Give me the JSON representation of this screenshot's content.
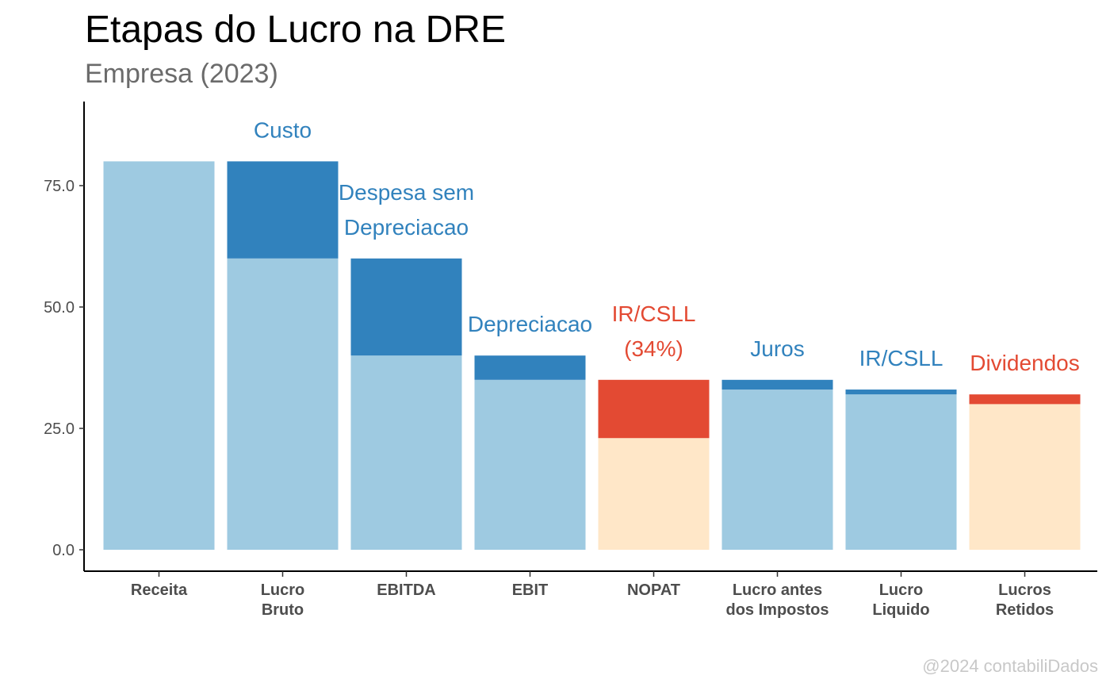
{
  "chart_data": {
    "type": "bar",
    "stacked": true,
    "title": "Etapas do Lucro na DRE",
    "subtitle": "Empresa (2023)",
    "caption": "@2024 contabiliDados",
    "xlabel": "",
    "ylabel": "",
    "ylim": [
      0,
      90
    ],
    "yticks": [
      "0.0",
      "25.0",
      "50.0",
      "75.0"
    ],
    "ytick_values": [
      0,
      25,
      50,
      75
    ],
    "grid": false,
    "categories": [
      [
        "Receita"
      ],
      [
        "Lucro",
        "Bruto"
      ],
      [
        "EBITDA"
      ],
      [
        "EBIT"
      ],
      [
        "NOPAT"
      ],
      [
        "Lucro antes",
        "dos Impostos"
      ],
      [
        "Lucro",
        "Liquido"
      ],
      [
        "Lucros",
        "Retidos"
      ]
    ],
    "base_values": [
      80,
      60,
      40,
      35,
      23,
      33,
      32,
      30
    ],
    "deduction_values": [
      0,
      20,
      20,
      5,
      12,
      2,
      1,
      2
    ],
    "base_colors": [
      "#9ecae1",
      "#9ecae1",
      "#9ecae1",
      "#9ecae1",
      "#ffe7c8",
      "#9ecae1",
      "#9ecae1",
      "#ffe7c8"
    ],
    "deduction_colors": [
      "#3182bd",
      "#3182bd",
      "#3182bd",
      "#3182bd",
      "#e34a33",
      "#3182bd",
      "#3182bd",
      "#e34a33"
    ],
    "annotations": [
      null,
      [
        "Custo"
      ],
      [
        "Despesa sem",
        "Depreciacao"
      ],
      [
        "Depreciacao"
      ],
      [
        "IR/CSLL",
        "(34%)"
      ],
      [
        "Juros"
      ],
      [
        "IR/CSLL"
      ],
      [
        "Dividendos"
      ]
    ]
  }
}
